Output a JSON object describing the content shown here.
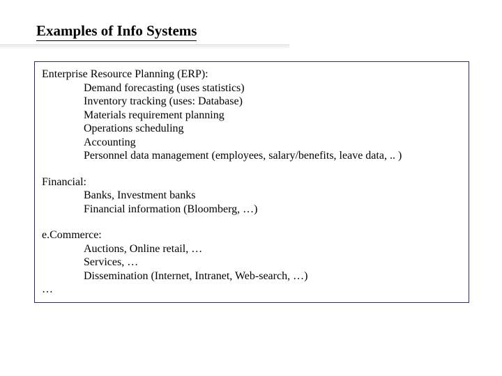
{
  "title": "Examples of Info Systems",
  "colors": {
    "text": "#000000",
    "background": "#ffffff",
    "box_border": "#2a2a6a"
  },
  "typography": {
    "title_fontsize": 21,
    "title_weight": "bold",
    "body_fontsize": 16,
    "font_family": "Times New Roman"
  },
  "sections": [
    {
      "heading": "Enterprise Resource Planning (ERP):",
      "items": [
        "Demand forecasting (uses statistics)",
        "Inventory tracking (uses: Database)",
        "Materials requirement planning",
        "Operations scheduling",
        "Accounting",
        "Personnel data management (employees, salary/benefits, leave data, .. )"
      ]
    },
    {
      "heading": "Financial:",
      "items": [
        "Banks, Investment banks",
        "Financial information (Bloomberg, …)"
      ]
    },
    {
      "heading": "e.Commerce:",
      "items": [
        "Auctions, Online retail, …",
        "Services, …",
        "Dissemination (Internet, Intranet, Web-search, …)"
      ]
    }
  ],
  "trailing": "…"
}
